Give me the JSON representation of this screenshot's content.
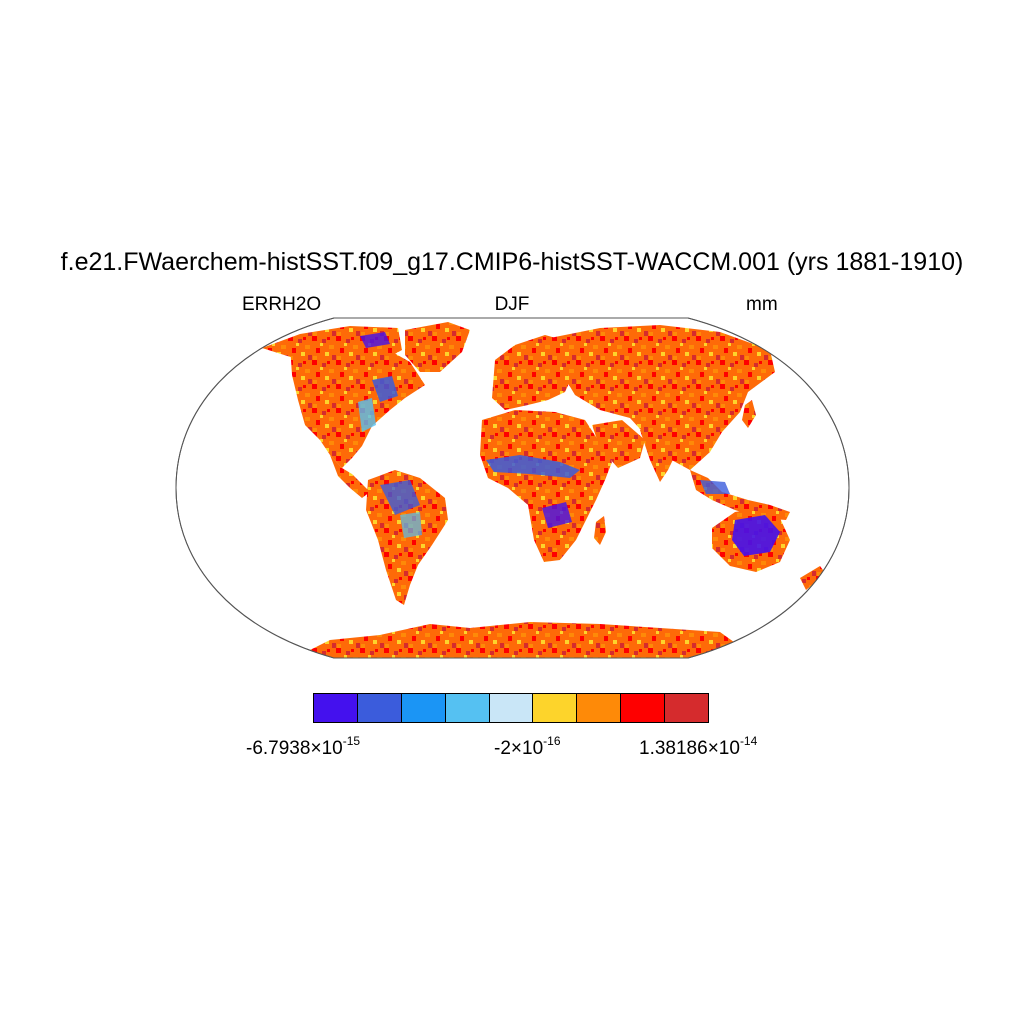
{
  "title": "f.e21.FWaerchem-histSST.f09_g17.CMIP6-histSST-WACCM.001 (yrs 1881-1910)",
  "variable": "ERRH2O",
  "season": "DJF",
  "units": "mm",
  "colorbar": {
    "colors": [
      "#4411ee",
      "#3b5cdc",
      "#1b95f5",
      "#55c1f2",
      "#c9e6f7",
      "#fdd42b",
      "#fe8a08",
      "#fe0000",
      "#d52b2d"
    ],
    "labels": {
      "min": {
        "mantissa": "-6.7938",
        "times": "×",
        "base": "10",
        "exponent": "-15"
      },
      "mid": {
        "mantissa": "-2",
        "times": "×",
        "base": "10",
        "exponent": "-16"
      },
      "max": {
        "mantissa": "1.38186",
        "times": "×",
        "base": "10",
        "exponent": "-14"
      }
    }
  }
}
